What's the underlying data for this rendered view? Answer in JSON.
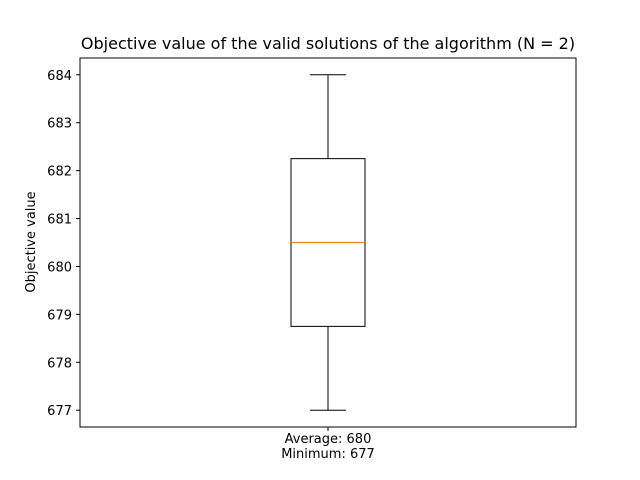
{
  "chart_data": {
    "type": "box",
    "title": "Objective value of the valid solutions of the algorithm (N = 2)",
    "xlabel": "",
    "ylabel": "Objective value",
    "x_tick_labels": [
      "Average: 680\nMinimum: 677"
    ],
    "ylim": [
      676.65,
      684.35
    ],
    "y_ticks": [
      677,
      678,
      679,
      680,
      681,
      682,
      683,
      684
    ],
    "grid": false,
    "boxes": [
      {
        "whisker_low": 677,
        "q1": 678.75,
        "median": 680.5,
        "q3": 682.25,
        "whisker_high": 684
      }
    ],
    "colors": {
      "box": "#000000",
      "median": "#ff7f0e",
      "frame": "#000000"
    }
  }
}
